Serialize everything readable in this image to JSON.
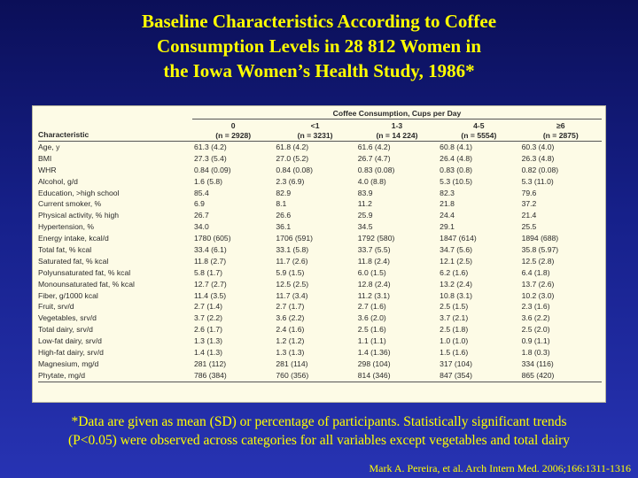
{
  "title": {
    "line1": "Baseline Characteristics According to Coffee",
    "line2": "Consumption Levels in 28 812 Women in",
    "line3": "the Iowa Women’s Health Study, 1986*"
  },
  "table": {
    "group_header": "Coffee Consumption, Cups per Day",
    "characteristic_header": "Characteristic",
    "columns": [
      {
        "label": "0",
        "n": "(n = 2928)"
      },
      {
        "label": "<1",
        "n": "(n = 3231)"
      },
      {
        "label": "1-3",
        "n": "(n = 14 224)"
      },
      {
        "label": "4-5",
        "n": "(n = 5554)"
      },
      {
        "label": "≥6",
        "n": "(n = 2875)"
      }
    ],
    "rows": [
      {
        "label": "Age, y",
        "values": [
          "61.3 (4.2)",
          "61.8 (4.2)",
          "61.6 (4.2)",
          "60.8 (4.1)",
          "60.3 (4.0)"
        ]
      },
      {
        "label": "BMI",
        "values": [
          "27.3 (5.4)",
          "27.0 (5.2)",
          "26.7 (4.7)",
          "26.4 (4.8)",
          "26.3 (4.8)"
        ]
      },
      {
        "label": "WHR",
        "values": [
          "0.84 (0.09)",
          "0.84 (0.08)",
          "0.83 (0.08)",
          "0.83 (0.8)",
          "0.82 (0.08)"
        ]
      },
      {
        "label": "Alcohol, g/d",
        "values": [
          "1.6 (5.8)",
          "2.3 (6.9)",
          "4.0 (8.8)",
          "5.3 (10.5)",
          "5.3 (11.0)"
        ]
      },
      {
        "label": "Education, >high school",
        "values": [
          "85.4",
          "82.9",
          "83.9",
          "82.3",
          "79.6"
        ]
      },
      {
        "label": "Current smoker, %",
        "values": [
          "6.9",
          "8.1",
          "11.2",
          "21.8",
          "37.2"
        ]
      },
      {
        "label": "Physical activity, % high",
        "values": [
          "26.7",
          "26.6",
          "25.9",
          "24.4",
          "21.4"
        ]
      },
      {
        "label": "Hypertension, %",
        "values": [
          "34.0",
          "36.1",
          "34.5",
          "29.1",
          "25.5"
        ]
      },
      {
        "label": "Energy intake, kcal/d",
        "values": [
          "1780 (605)",
          "1706 (591)",
          "1792 (580)",
          "1847 (614)",
          "1894 (688)"
        ]
      },
      {
        "label": "Total fat, % kcal",
        "values": [
          "33.4 (6.1)",
          "33.1 (5.8)",
          "33.7 (5.5)",
          "34.7 (5.6)",
          "35.8 (5.97)"
        ]
      },
      {
        "label": "Saturated fat, % kcal",
        "values": [
          "11.8 (2.7)",
          "11.7 (2.6)",
          "11.8 (2.4)",
          "12.1 (2.5)",
          "12.5 (2.8)"
        ]
      },
      {
        "label": "Polyunsaturated fat, % kcal",
        "values": [
          "5.8 (1.7)",
          "5.9 (1.5)",
          "6.0 (1.5)",
          "6.2 (1.6)",
          "6.4 (1.8)"
        ]
      },
      {
        "label": "Monounsaturated fat, % kcal",
        "values": [
          "12.7 (2.7)",
          "12.5 (2.5)",
          "12.8 (2.4)",
          "13.2 (2.4)",
          "13.7 (2.6)"
        ]
      },
      {
        "label": "Fiber, g/1000 kcal",
        "values": [
          "11.4 (3.5)",
          "11.7 (3.4)",
          "11.2 (3.1)",
          "10.8 (3.1)",
          "10.2 (3.0)"
        ]
      },
      {
        "label": "Fruit, srv/d",
        "values": [
          "2.7 (1.4)",
          "2.7 (1.7)",
          "2.7 (1.6)",
          "2.5 (1.5)",
          "2.3 (1.6)"
        ]
      },
      {
        "label": "Vegetables, srv/d",
        "values": [
          "3.7 (2.2)",
          "3.6 (2.2)",
          "3.6 (2.0)",
          "3.7 (2.1)",
          "3.6 (2.2)"
        ]
      },
      {
        "label": "Total dairy, srv/d",
        "values": [
          "2.6 (1.7)",
          "2.4 (1.6)",
          "2.5 (1.6)",
          "2.5 (1.8)",
          "2.5 (2.0)"
        ]
      },
      {
        "label": "Low-fat dairy, srv/d",
        "values": [
          "1.3 (1.3)",
          "1.2 (1.2)",
          "1.1 (1.1)",
          "1.0 (1.0)",
          "0.9 (1.1)"
        ]
      },
      {
        "label": "High-fat dairy, srv/d",
        "values": [
          "1.4 (1.3)",
          "1.3 (1.3)",
          "1.4 (1.36)",
          "1.5 (1.6)",
          "1.8 (0.3)"
        ]
      },
      {
        "label": "Magnesium, mg/d",
        "values": [
          "281 (112)",
          "281 (114)",
          "298 (104)",
          "317 (104)",
          "334 (116)"
        ]
      },
      {
        "label": "Phytate, mg/d",
        "values": [
          "786 (384)",
          "760 (356)",
          "814 (346)",
          "847 (354)",
          "865 (420)"
        ]
      }
    ]
  },
  "footnote": {
    "line1": "*Data are given as mean (SD) or percentage of participants. Statistically significant trends",
    "line2": "(P<0.05) were observed across categories for all variables except vegetables and total dairy"
  },
  "citation": "Mark A. Pereira, et al. Arch Intern Med. 2006;166:1311-1316"
}
